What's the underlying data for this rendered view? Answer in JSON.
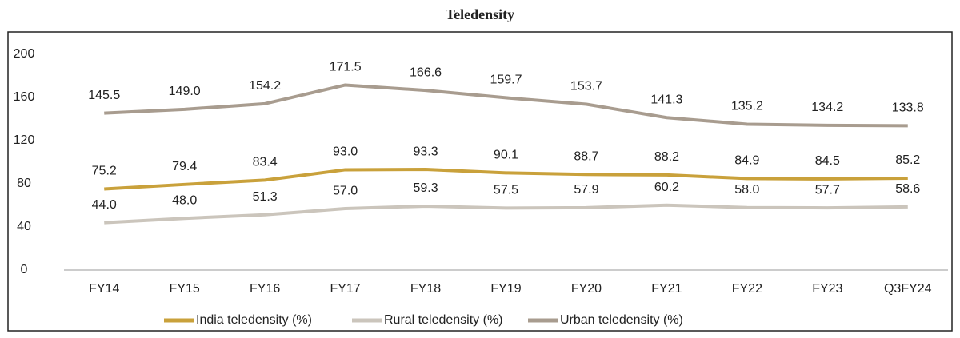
{
  "chart_data": {
    "type": "line",
    "title": "Teledensity",
    "categories": [
      "FY14",
      "FY15",
      "FY16",
      "FY17",
      "FY18",
      "FY19",
      "FY20",
      "FY21",
      "FY22",
      "FY23",
      "Q3FY24"
    ],
    "series": [
      {
        "name": "India teledensity (%)",
        "color": "#c9a13b",
        "values": [
          75.2,
          79.4,
          83.4,
          93.0,
          93.3,
          90.1,
          88.7,
          88.2,
          84.9,
          84.5,
          85.2
        ],
        "value_labels": [
          "75.2",
          "79.4",
          "83.4",
          "93.0",
          "93.3",
          "90.1",
          "88.7",
          "88.2",
          "84.9",
          "84.5",
          "85.2"
        ]
      },
      {
        "name": "Rural teledensity (%)",
        "color": "#cbc5bc",
        "values": [
          44.0,
          48.0,
          51.3,
          57.0,
          59.3,
          57.5,
          57.9,
          60.2,
          58.0,
          57.7,
          58.6
        ],
        "value_labels": [
          "44.0",
          "48.0",
          "51.3",
          "57.0",
          "59.3",
          "57.5",
          "57.9",
          "60.2",
          "58.0",
          "57.7",
          "58.6"
        ]
      },
      {
        "name": "Urban teledensity (%)",
        "color": "#a89c8f",
        "values": [
          145.5,
          149.0,
          154.2,
          171.5,
          166.6,
          159.7,
          153.7,
          141.3,
          135.2,
          134.2,
          133.8
        ],
        "value_labels": [
          "145.5",
          "149.0",
          "154.2",
          "171.5",
          "166.6",
          "159.7",
          "153.7",
          "141.3",
          "135.2",
          "134.2",
          "133.8"
        ]
      }
    ],
    "ylim": [
      0,
      200
    ],
    "yticks": [
      0,
      40,
      80,
      120,
      160,
      200
    ],
    "grid": false,
    "legend": "bottom"
  }
}
